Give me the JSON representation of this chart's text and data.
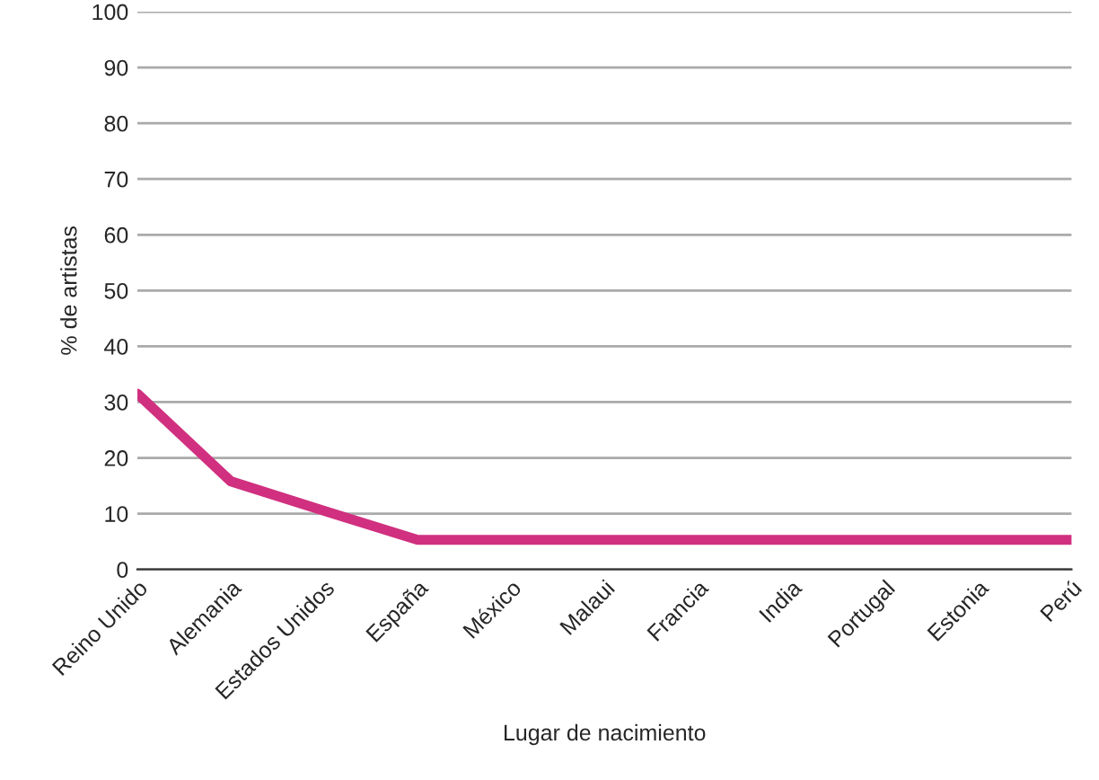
{
  "chart_data": {
    "type": "line",
    "xlabel": "Lugar de nacimiento",
    "ylabel": "% de artistas",
    "categories": [
      "Reino Unido",
      "Alemania",
      "Estados Unidos",
      "España",
      "México",
      "Malaui",
      "Francia",
      "India",
      "Portugal",
      "Estonia",
      "Perú"
    ],
    "series": [
      {
        "color": "#d0307f",
        "values": [
          31.5,
          15.8,
          10.5,
          5.3,
          5.3,
          5.3,
          5.3,
          5.3,
          5.3,
          5.3,
          5.3
        ]
      }
    ],
    "ylim": [
      0,
      100
    ],
    "yticks": [
      0,
      10,
      20,
      30,
      40,
      50,
      60,
      70,
      80,
      90,
      100
    ],
    "grid": "y",
    "marker": "none",
    "line_style": "solid",
    "legend": false
  }
}
